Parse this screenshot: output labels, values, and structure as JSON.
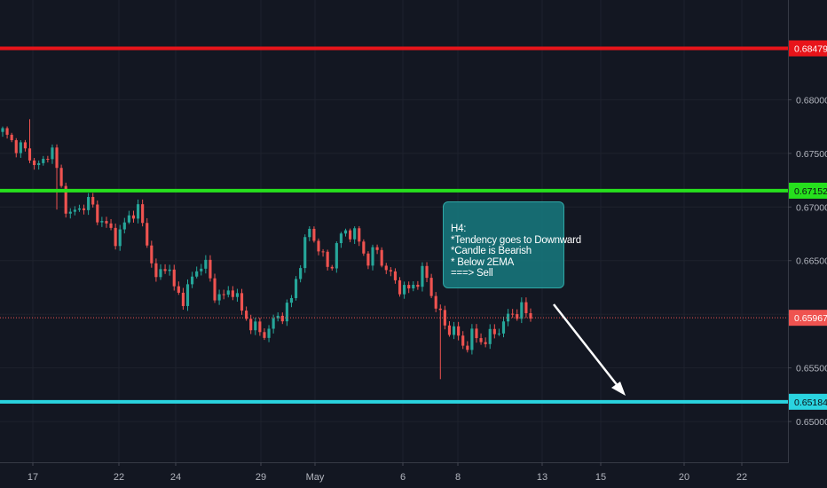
{
  "chart_data": {
    "type": "candlestick",
    "x_ticks": [
      "17",
      "22",
      "24",
      "29",
      "May",
      "6",
      "8",
      "13",
      "15",
      "20",
      "22"
    ],
    "y_ticks": [
      "0.68000",
      "0.67500",
      "0.67000",
      "0.66500",
      "0.66000",
      "0.65500",
      "0.65000"
    ],
    "ylim": [
      0.6462,
      0.6893
    ],
    "grid": true,
    "horizontal_levels": [
      {
        "name": "resistance",
        "value": 0.68479,
        "label": "0.68479",
        "color": "#e8141a"
      },
      {
        "name": "ema",
        "value": 0.67152,
        "label": "0.67152",
        "color": "#26e01d"
      },
      {
        "name": "support",
        "value": 0.65184,
        "label": "0.65184",
        "color": "#2ad4e0"
      }
    ],
    "current_price": {
      "value": 0.65967,
      "label": "0.65967",
      "color": "#ef5350"
    },
    "candle_colors": {
      "up": "#26a69a",
      "down": "#ef5350"
    },
    "path": [
      0.677,
      0.676,
      0.6755,
      0.6745,
      0.6735,
      0.676,
      0.672,
      0.669,
      0.67,
      0.6705,
      0.669,
      0.668,
      0.667,
      0.669,
      0.67,
      0.667,
      0.663,
      0.665,
      0.662,
      0.6615,
      0.664,
      0.665,
      0.662,
      0.6615,
      0.6625,
      0.66,
      0.659,
      0.658,
      0.659,
      0.66,
      0.661,
      0.665,
      0.668,
      0.666,
      0.664,
      0.667,
      0.668,
      0.667,
      0.665,
      0.666,
      0.664,
      0.663,
      0.662,
      0.663,
      0.664,
      0.661,
      0.659,
      0.6585,
      0.657,
      0.658,
      0.6575,
      0.658,
      0.659,
      0.66,
      0.6605,
      0.6597
    ]
  },
  "annotation": {
    "lines": [
      "H4:",
      "*Tendency goes to Downward",
      "*Candle is Bearish",
      "* Below 2EMA",
      "===> Sell"
    ]
  }
}
